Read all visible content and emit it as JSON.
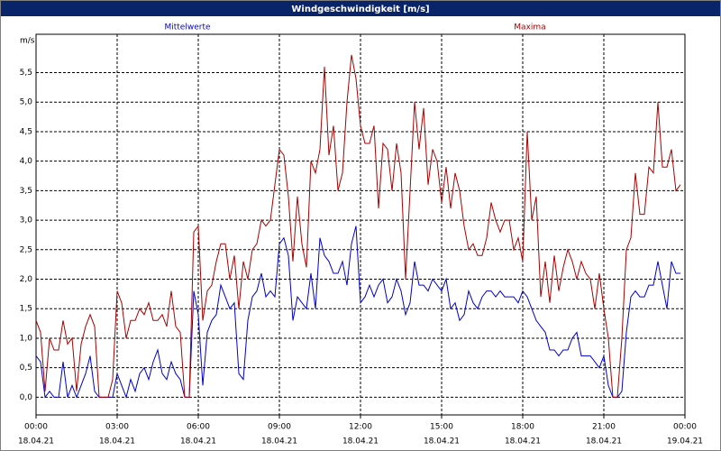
{
  "chart_data": {
    "type": "line",
    "title": "Windgeschwindigkeit [m/s]",
    "y_label": "m/s",
    "xlim": [
      0,
      1440
    ],
    "ylim": [
      -0.3,
      6.15
    ],
    "xticks": [
      {
        "value": 0,
        "label": "00:00"
      },
      {
        "value": 180,
        "label": "03:00"
      },
      {
        "value": 360,
        "label": "06:00"
      },
      {
        "value": 540,
        "label": "09:00"
      },
      {
        "value": 720,
        "label": "12:00"
      },
      {
        "value": 900,
        "label": "15:00"
      },
      {
        "value": 1080,
        "label": "18:00"
      },
      {
        "value": 1260,
        "label": "21:00"
      },
      {
        "value": 1440,
        "label": "00:00"
      }
    ],
    "xtick_dates": [
      "18.04.21",
      "18.04.21",
      "18.04.21",
      "18.04.21",
      "18.04.21",
      "18.04.21",
      "18.04.21",
      "18.04.21",
      "19.04.21"
    ],
    "yticks": [
      {
        "value": 0,
        "label": "0,0"
      },
      {
        "value": 0.5,
        "label": "0,5"
      },
      {
        "value": 1,
        "label": "1,0"
      },
      {
        "value": 1.5,
        "label": "1,5"
      },
      {
        "value": 2,
        "label": "2,0"
      },
      {
        "value": 2.5,
        "label": "2,5"
      },
      {
        "value": 3,
        "label": "3,0"
      },
      {
        "value": 3.5,
        "label": "3,5"
      },
      {
        "value": 4,
        "label": "4,0"
      },
      {
        "value": 4.5,
        "label": "4,5"
      },
      {
        "value": 5,
        "label": "5,0"
      },
      {
        "value": 5.5,
        "label": "5,5"
      }
    ],
    "grid": true,
    "x": [
      0,
      10,
      20,
      30,
      40,
      50,
      60,
      70,
      80,
      90,
      100,
      110,
      120,
      130,
      140,
      150,
      160,
      170,
      180,
      190,
      200,
      210,
      220,
      230,
      240,
      250,
      260,
      270,
      280,
      290,
      300,
      310,
      320,
      330,
      340,
      350,
      360,
      370,
      380,
      390,
      400,
      410,
      420,
      430,
      440,
      450,
      460,
      470,
      480,
      490,
      500,
      510,
      520,
      530,
      540,
      550,
      560,
      570,
      580,
      590,
      600,
      610,
      620,
      630,
      640,
      650,
      660,
      670,
      680,
      690,
      700,
      710,
      720,
      730,
      740,
      750,
      760,
      770,
      780,
      790,
      800,
      810,
      820,
      830,
      840,
      850,
      860,
      870,
      880,
      890,
      900,
      910,
      920,
      930,
      940,
      950,
      960,
      970,
      980,
      990,
      1000,
      1010,
      1020,
      1030,
      1040,
      1050,
      1060,
      1070,
      1080,
      1090,
      1100,
      1110,
      1120,
      1130,
      1140,
      1150,
      1160,
      1170,
      1180,
      1190,
      1200,
      1210,
      1220,
      1230,
      1240,
      1250,
      1260,
      1270,
      1280,
      1290,
      1300,
      1310,
      1320,
      1330,
      1340,
      1350,
      1360,
      1370,
      1380,
      1390,
      1400,
      1410,
      1420,
      1430
    ],
    "series": [
      {
        "name": "Mittelwerte",
        "color": "#0000cc",
        "values": [
          0.7,
          0.6,
          0.0,
          0.1,
          0.0,
          0.0,
          0.6,
          0.0,
          0.2,
          0.0,
          0.2,
          0.4,
          0.7,
          0.1,
          0.0,
          0.0,
          0.0,
          0.0,
          0.4,
          0.2,
          0.0,
          0.3,
          0.1,
          0.4,
          0.5,
          0.3,
          0.6,
          0.8,
          0.4,
          0.3,
          0.6,
          0.4,
          0.3,
          0.0,
          0.0,
          1.8,
          1.4,
          0.2,
          1.1,
          1.3,
          1.4,
          1.9,
          1.7,
          1.5,
          1.6,
          0.4,
          0.3,
          1.3,
          1.7,
          1.8,
          2.1,
          1.7,
          1.8,
          1.7,
          2.6,
          2.7,
          2.4,
          1.3,
          1.7,
          1.6,
          1.5,
          2.1,
          1.5,
          2.7,
          2.4,
          2.3,
          2.1,
          2.1,
          2.3,
          1.9,
          2.6,
          2.9,
          1.6,
          1.7,
          1.9,
          1.7,
          1.9,
          2.0,
          1.6,
          1.7,
          2.0,
          1.8,
          1.4,
          1.6,
          2.3,
          1.9,
          1.9,
          1.8,
          2.0,
          1.9,
          1.8,
          2.0,
          1.5,
          1.6,
          1.3,
          1.4,
          1.8,
          1.6,
          1.5,
          1.7,
          1.8,
          1.8,
          1.7,
          1.8,
          1.7,
          1.7,
          1.7,
          1.6,
          1.8,
          1.7,
          1.5,
          1.3,
          1.2,
          1.1,
          0.8,
          0.8,
          0.7,
          0.8,
          0.8,
          1.0,
          1.1,
          0.7,
          0.7,
          0.7,
          0.6,
          0.5,
          0.7,
          0.2,
          0.0,
          0.0,
          0.1,
          1.1,
          1.7,
          1.8,
          1.7,
          1.7,
          1.9,
          1.9,
          2.3,
          1.9,
          1.5,
          2.3,
          2.1,
          2.1
        ]
      },
      {
        "name": "Maxima",
        "color": "#aa0000",
        "values": [
          1.3,
          1.1,
          0.1,
          1.0,
          0.8,
          0.8,
          1.3,
          0.9,
          1.0,
          0.1,
          0.9,
          1.2,
          1.4,
          1.2,
          0.0,
          0.0,
          0.0,
          0.3,
          1.8,
          1.6,
          1.0,
          1.3,
          1.3,
          1.5,
          1.4,
          1.6,
          1.3,
          1.3,
          1.4,
          1.2,
          1.8,
          1.2,
          1.1,
          0.0,
          0.0,
          2.8,
          2.9,
          1.3,
          1.8,
          1.9,
          2.3,
          2.6,
          2.6,
          2.0,
          2.4,
          1.5,
          2.3,
          2.0,
          2.5,
          2.6,
          3.0,
          2.9,
          3.0,
          3.6,
          4.2,
          4.1,
          3.4,
          2.3,
          3.4,
          2.6,
          2.2,
          4.0,
          3.8,
          4.2,
          5.6,
          4.1,
          4.6,
          3.5,
          3.8,
          5.0,
          5.8,
          5.4,
          4.6,
          4.3,
          4.3,
          4.6,
          3.2,
          4.3,
          4.2,
          3.5,
          4.3,
          3.8,
          2.0,
          3.5,
          5.0,
          4.2,
          4.9,
          3.6,
          4.2,
          4.0,
          3.3,
          3.9,
          3.2,
          3.8,
          3.5,
          2.9,
          2.5,
          2.6,
          2.4,
          2.4,
          2.7,
          3.3,
          3.0,
          2.8,
          3.0,
          3.0,
          2.5,
          2.7,
          2.3,
          4.5,
          3.0,
          3.4,
          1.7,
          2.3,
          1.6,
          2.4,
          1.8,
          2.2,
          2.5,
          2.3,
          2.0,
          2.3,
          2.1,
          2.0,
          1.5,
          2.1,
          1.5,
          1.0,
          0.0,
          0.0,
          1.0,
          2.5,
          2.7,
          3.8,
          3.1,
          3.1,
          3.9,
          3.8,
          5.0,
          3.9,
          3.9,
          4.2,
          3.5,
          3.6
        ]
      }
    ]
  }
}
